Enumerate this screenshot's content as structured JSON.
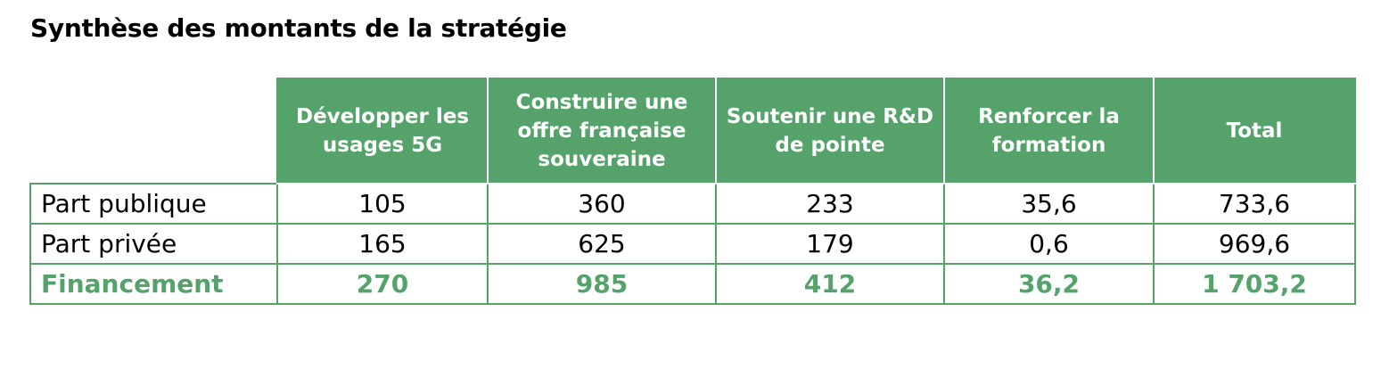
{
  "title": "Synthèse des montants de la stratégie",
  "colors": {
    "accent_green": "#55a26b",
    "header_text": "#ffffff",
    "body_text": "#000000"
  },
  "table": {
    "headers": [
      "Développer les usages 5G",
      "Construire une offre française souveraine",
      "Soutenir une R&D de pointe",
      "Renforcer la formation",
      "Total"
    ],
    "rows": [
      {
        "label": "Part publique",
        "values": [
          "105",
          "360",
          "233",
          "35,6",
          "733,6"
        ]
      },
      {
        "label": "Part privée",
        "values": [
          "165",
          "625",
          "179",
          "0,6",
          "969,6"
        ]
      },
      {
        "label": "Financement",
        "values": [
          "270",
          "985",
          "412",
          "36,2",
          "1 703,2"
        ]
      }
    ]
  }
}
